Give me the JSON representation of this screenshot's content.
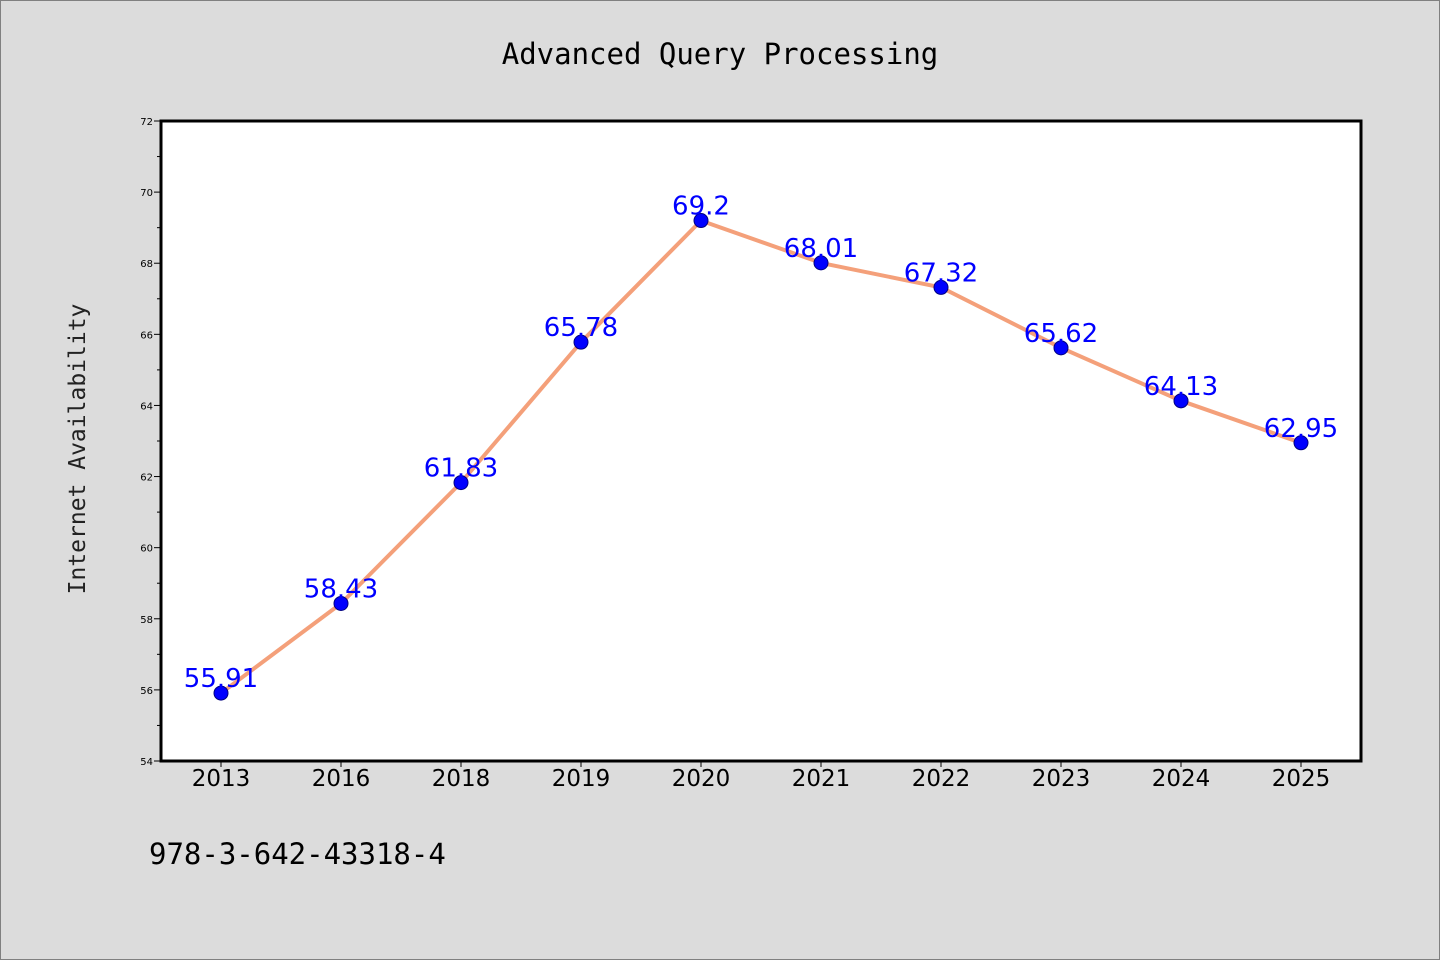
{
  "chart_data": {
    "type": "line",
    "title": "Advanced Query Processing",
    "xlabel": "",
    "ylabel": "Internet Availability",
    "categories": [
      "2013",
      "2016",
      "2018",
      "2019",
      "2020",
      "2021",
      "2022",
      "2023",
      "2024",
      "2025"
    ],
    "series": [
      {
        "values": [
          55.91,
          58.43,
          61.83,
          65.78,
          69.2,
          68.01,
          67.32,
          65.62,
          64.13,
          62.95
        ],
        "labels": [
          "55.91",
          "58.43",
          "61.83",
          "65.78",
          "69.2",
          "68.01",
          "67.32",
          "65.62",
          "64.13",
          "62.95"
        ],
        "line_color": "#f4a07a",
        "marker_color": "#0000ff"
      }
    ],
    "ylim": [
      54,
      72
    ],
    "yticks": [
      "54",
      "56",
      "58",
      "60",
      "62",
      "64",
      "66",
      "68",
      "70",
      "72"
    ],
    "grid": false,
    "legend": "none"
  },
  "footnote": "978-3-642-43318-4"
}
